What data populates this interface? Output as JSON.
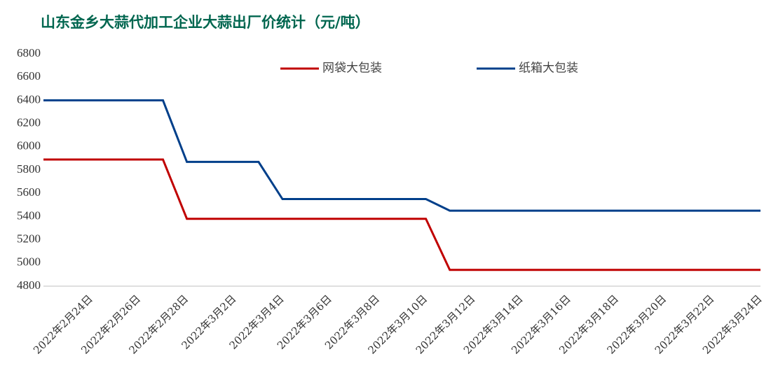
{
  "chart_data": {
    "type": "line",
    "title": "山东金乡大蒜代加工企业大蒜出厂价统计（元/吨）",
    "categories": [
      null,
      null,
      "2022年2月24日",
      null,
      "2022年2月26日",
      null,
      "2022年2月28日",
      null,
      "2022年3月2日",
      null,
      "2022年3月4日",
      null,
      "2022年3月6日",
      null,
      "2022年3月8日",
      null,
      "2022年3月10日",
      null,
      "2022年3月12日",
      null,
      "2022年3月14日",
      null,
      "2022年3月16日",
      null,
      "2022年3月18日",
      null,
      "2022年3月20日",
      null,
      "2022年3月22日",
      null,
      "2022年3月24日"
    ],
    "series": [
      {
        "name": "网袋大包装",
        "color": "#c00000",
        "values": [
          5890,
          5890,
          5890,
          5890,
          5890,
          5890,
          5380,
          5380,
          5380,
          5380,
          5380,
          5380,
          5380,
          5380,
          5380,
          5380,
          5380,
          4940,
          4940,
          4940,
          4940,
          4940,
          4940,
          4940,
          4940,
          4940,
          4940,
          4940,
          4940,
          4940,
          4940
        ]
      },
      {
        "name": "纸箱大包装",
        "color": "#003f8a",
        "values": [
          6400,
          6400,
          6400,
          6400,
          6400,
          6400,
          5870,
          5870,
          5870,
          5870,
          5550,
          5550,
          5550,
          5550,
          5550,
          5550,
          5550,
          5450,
          5450,
          5450,
          5450,
          5450,
          5450,
          5450,
          5450,
          5450,
          5450,
          5450,
          5450,
          5450,
          5450
        ]
      }
    ],
    "ylim": [
      4800,
      6800
    ],
    "yticks": [
      4800,
      5000,
      5200,
      5400,
      5600,
      5800,
      6000,
      6200,
      6400,
      6600,
      6800
    ],
    "legend": "top"
  }
}
